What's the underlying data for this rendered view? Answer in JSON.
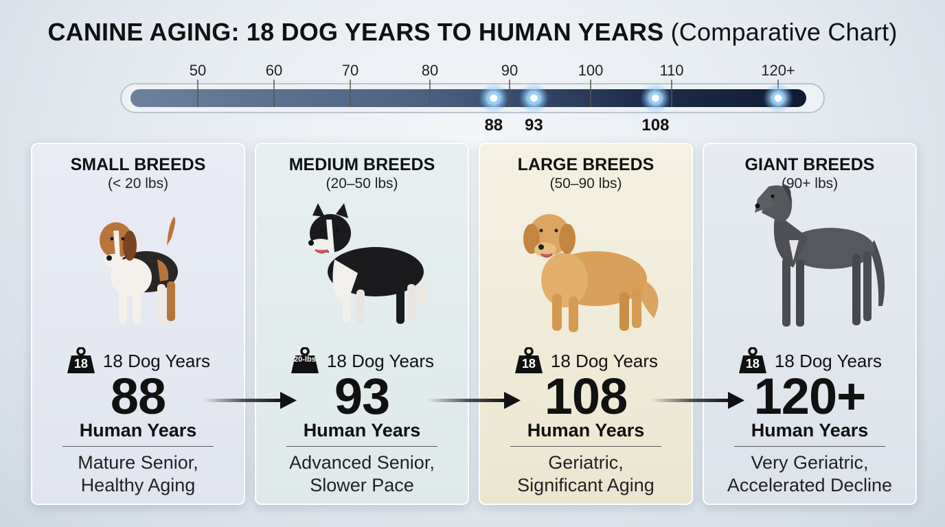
{
  "title": {
    "main": "CANINE AGING: 18 DOG YEARS TO HUMAN YEARS",
    "sub": "(Comparative Chart)"
  },
  "chart_data": {
    "type": "timeline",
    "scale_ticks": [
      "50",
      "60",
      "70",
      "80",
      "90",
      "100",
      "110",
      "120+"
    ],
    "markers": [
      88,
      93,
      108,
      120
    ],
    "marker_labels": [
      "88",
      "93",
      "108",
      ""
    ],
    "categories": [
      "SMALL BREEDS",
      "MEDIUM BREEDS",
      "LARGE BREEDS",
      "GIANT BREEDS"
    ],
    "values": [
      88,
      93,
      108,
      120
    ]
  },
  "cards": [
    {
      "name": "SMALL BREEDS",
      "weight": "(< 20 lbs)",
      "badge": "18",
      "dog_years": "18 Dog Years",
      "human": "88",
      "human_label": "Human Years",
      "desc1": "Mature Senior,",
      "desc2": "Healthy Aging",
      "dog": "beagle"
    },
    {
      "name": "MEDIUM BREEDS",
      "weight": "(20–50 lbs)",
      "badge": "20-lbs",
      "dog_years": "18 Dog Years",
      "human": "93",
      "human_label": "Human Years",
      "desc1": "Advanced Senior,",
      "desc2": "Slower Pace",
      "dog": "border-collie"
    },
    {
      "name": "LARGE BREEDS",
      "weight": "(50–90 lbs)",
      "badge": "18",
      "dog_years": "18 Dog Years",
      "human": "108",
      "human_label": "Human Years",
      "desc1": "Geriatric,",
      "desc2": "Significant Aging",
      "dog": "golden-retriever"
    },
    {
      "name": "GIANT BREEDS",
      "weight": "(90+ lbs)",
      "badge": "18",
      "dog_years": "18 Dog Years",
      "human": "120+",
      "human_label": "Human Years",
      "desc1": "Very Geriatric,",
      "desc2": "Accelerated Decline",
      "dog": "great-dane"
    }
  ],
  "colors": {
    "bar_light": "#5f7590",
    "bar_dark": "#16233a",
    "marker_glow": "#bfe4ff",
    "text": "#111111"
  }
}
